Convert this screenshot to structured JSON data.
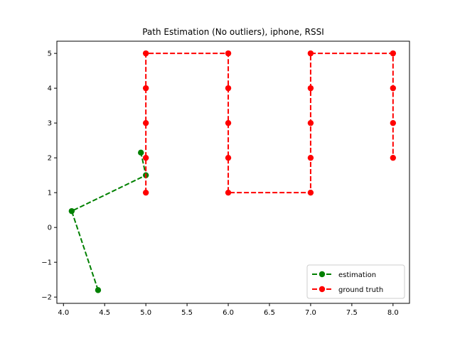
{
  "chart_data": {
    "type": "line",
    "title": "Path Estimation (No outliers), iphone, RSSI",
    "xlabel": "",
    "ylabel": "",
    "xlim": [
      3.92,
      8.2
    ],
    "ylim": [
      -2.18,
      5.35
    ],
    "xticks": [
      4.0,
      4.5,
      5.0,
      5.5,
      6.0,
      6.5,
      7.0,
      7.5,
      8.0
    ],
    "xtick_labels": [
      "4.0",
      "4.5",
      "5.0",
      "5.5",
      "6.0",
      "6.5",
      "7.0",
      "7.5",
      "8.0"
    ],
    "yticks": [
      -2,
      -1,
      0,
      1,
      2,
      3,
      4,
      5
    ],
    "ytick_labels": [
      "−2",
      "−1",
      "0",
      "1",
      "2",
      "3",
      "4",
      "5"
    ],
    "grid": false,
    "legend_position": "lower-right",
    "series": [
      {
        "name": "estimation",
        "color": "#008000",
        "linestyle": "dashed",
        "marker": "circle",
        "x": [
          4.42,
          4.1,
          5.0,
          4.94
        ],
        "y": [
          -1.8,
          0.47,
          1.5,
          2.15
        ]
      },
      {
        "name": "ground truth",
        "color": "#ff0000",
        "linestyle": "dashed",
        "marker": "circle",
        "x": [
          5,
          5,
          5,
          5,
          5,
          6,
          6,
          6,
          6,
          6,
          7,
          7,
          7,
          7,
          7,
          8,
          8,
          8,
          8
        ],
        "y": [
          1,
          2,
          3,
          4,
          5,
          5,
          4,
          3,
          2,
          1,
          1,
          2,
          3,
          4,
          5,
          5,
          4,
          3,
          2
        ]
      }
    ]
  }
}
